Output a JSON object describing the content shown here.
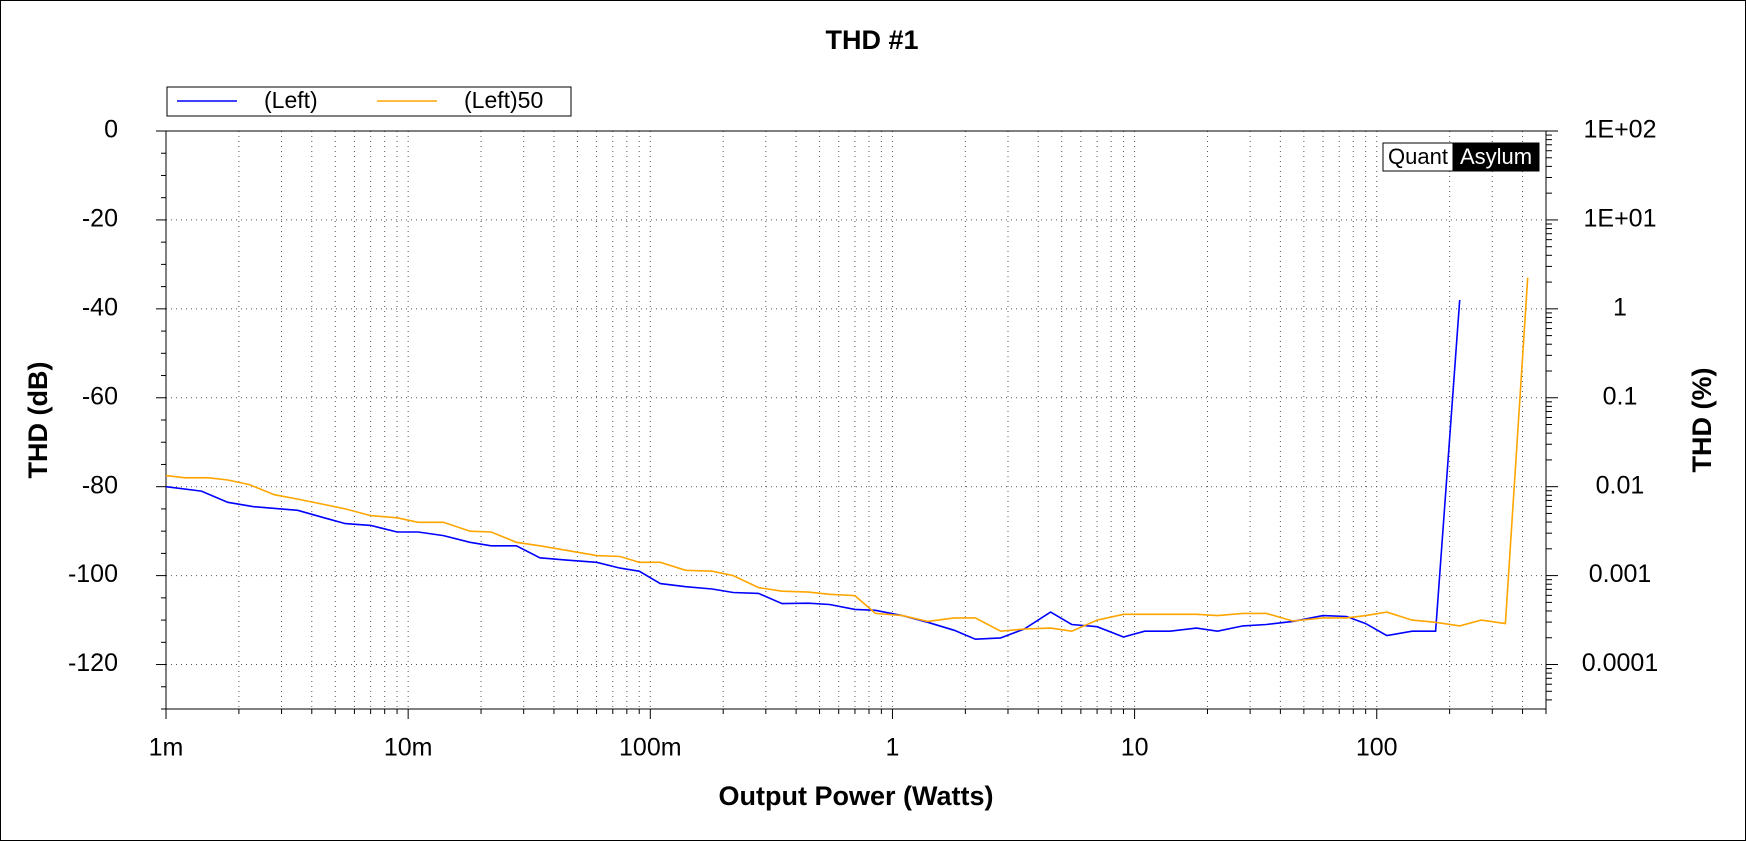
{
  "chart_data": {
    "type": "line",
    "title": "THD #1",
    "x_label": "Output Power (Watts)",
    "y_label": "THD (dB)",
    "y2_label": "THD (%)",
    "logo": [
      "Quant",
      "Asylum"
    ],
    "xlog": true,
    "y2log": true,
    "grid": true,
    "legend": "top-left",
    "xlim": [
      0.001,
      500
    ],
    "ylim": [
      -130,
      0
    ],
    "y2lim": [
      3.16e-05,
      100
    ],
    "xticks": [
      {
        "value": 0.001,
        "label": "1m"
      },
      {
        "value": 0.01,
        "label": "10m"
      },
      {
        "value": 0.1,
        "label": "100m"
      },
      1,
      10,
      100
    ],
    "yticks": [
      0,
      -20,
      -40,
      -60,
      -80,
      -100,
      -120
    ],
    "y2ticks": [
      {
        "value": 100,
        "label": "1E+02"
      },
      {
        "value": 10,
        "label": "1E+01"
      },
      1,
      0.1,
      0.01,
      0.001,
      0.0001
    ],
    "series": [
      {
        "name": "(Left)",
        "color": "#0000ff",
        "x": [
          0.001,
          0.0014,
          0.0018,
          0.0023,
          0.0035,
          0.0045,
          0.0055,
          0.007,
          0.009,
          0.011,
          0.014,
          0.018,
          0.022,
          0.028,
          0.035,
          0.045,
          0.06,
          0.075,
          0.09,
          0.11,
          0.14,
          0.18,
          0.22,
          0.28,
          0.35,
          0.45,
          0.55,
          0.7,
          0.85,
          1.1,
          1.4,
          1.8,
          2.2,
          2.8,
          3.5,
          4.5,
          5.5,
          7,
          9,
          11,
          14,
          18,
          22,
          28,
          35,
          45,
          60,
          75,
          90,
          110,
          140,
          175,
          220
        ],
        "values": [
          -80,
          -81,
          -83.5,
          -84.5,
          -85.3,
          -87,
          -88.3,
          -88.7,
          -90.2,
          -90.2,
          -91,
          -92.5,
          -93.3,
          -93.3,
          -96,
          -96.5,
          -97,
          -98.3,
          -99,
          -101.8,
          -102.5,
          -103,
          -103.8,
          -104,
          -106.3,
          -106.2,
          -106.5,
          -107.6,
          -107.8,
          -109,
          -110.5,
          -112.3,
          -114.3,
          -114,
          -112,
          -108.2,
          -111,
          -111.5,
          -113.8,
          -112.5,
          -112.5,
          -111.8,
          -112.5,
          -111.3,
          -111,
          -110.3,
          -109,
          -109.2,
          -110.8,
          -113.5,
          -112.5,
          -112.5,
          -38
        ]
      },
      {
        "name": "(Left)50",
        "color": "#ffa500",
        "x": [
          0.001,
          0.0012,
          0.0015,
          0.0018,
          0.0022,
          0.0028,
          0.0035,
          0.0045,
          0.0055,
          0.007,
          0.009,
          0.011,
          0.014,
          0.018,
          0.022,
          0.028,
          0.035,
          0.045,
          0.06,
          0.075,
          0.09,
          0.11,
          0.14,
          0.18,
          0.22,
          0.28,
          0.35,
          0.45,
          0.55,
          0.7,
          0.85,
          1.1,
          1.4,
          1.8,
          2.2,
          2.8,
          3.5,
          4.5,
          5.5,
          7,
          9,
          11,
          14,
          18,
          22,
          28,
          35,
          45,
          60,
          75,
          90,
          110,
          140,
          175,
          220,
          270,
          340,
          420
        ],
        "values": [
          -77.5,
          -78,
          -78,
          -78.5,
          -79.5,
          -81.8,
          -82.8,
          -84,
          -85,
          -86.5,
          -87,
          -88,
          -88,
          -90,
          -90.2,
          -92.5,
          -93.3,
          -94.3,
          -95.5,
          -95.7,
          -97,
          -97,
          -98.8,
          -99,
          -100,
          -102.7,
          -103.5,
          -103.7,
          -104.2,
          -104.5,
          -108.5,
          -109,
          -110.3,
          -109.5,
          -109.5,
          -112.5,
          -112,
          -111.8,
          -112.5,
          -110,
          -108.7,
          -108.7,
          -108.7,
          -108.7,
          -109,
          -108.5,
          -108.5,
          -110.2,
          -109.5,
          -109.5,
          -109,
          -108.2,
          -110,
          -110.5,
          -111.3,
          -110,
          -110.8,
          -33
        ]
      }
    ]
  }
}
